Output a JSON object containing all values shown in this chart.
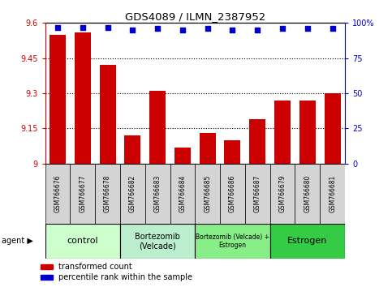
{
  "title": "GDS4089 / ILMN_2387952",
  "samples": [
    "GSM766676",
    "GSM766677",
    "GSM766678",
    "GSM766682",
    "GSM766683",
    "GSM766684",
    "GSM766685",
    "GSM766686",
    "GSM766687",
    "GSM766679",
    "GSM766680",
    "GSM766681"
  ],
  "bar_values": [
    9.55,
    9.56,
    9.42,
    9.12,
    9.31,
    9.07,
    9.13,
    9.1,
    9.19,
    9.27,
    9.27,
    9.3
  ],
  "percentile_values": [
    97,
    97,
    97,
    95,
    96,
    95,
    96,
    95,
    95,
    96,
    96,
    96
  ],
  "bar_color": "#cc0000",
  "dot_color": "#0000cc",
  "ylim_left": [
    9.0,
    9.6
  ],
  "ylim_right": [
    0,
    100
  ],
  "yticks_left": [
    9.0,
    9.15,
    9.3,
    9.45,
    9.6
  ],
  "ytick_labels_left": [
    "9",
    "9.15",
    "9.3",
    "9.45",
    "9.6"
  ],
  "yticks_right": [
    0,
    25,
    50,
    75,
    100
  ],
  "ytick_labels_right": [
    "0",
    "25",
    "50",
    "75",
    "100%"
  ],
  "hlines": [
    9.15,
    9.3,
    9.45
  ],
  "groups": [
    {
      "label": "control",
      "start": 0,
      "end": 3,
      "color": "#ccffcc",
      "fontsize": 8
    },
    {
      "label": "Bortezomib\n(Velcade)",
      "start": 3,
      "end": 6,
      "color": "#bbeecc",
      "fontsize": 7
    },
    {
      "label": "Bortezomib (Velcade) +\nEstrogen",
      "start": 6,
      "end": 9,
      "color": "#88ee88",
      "fontsize": 5.5
    },
    {
      "label": "Estrogen",
      "start": 9,
      "end": 12,
      "color": "#33cc44",
      "fontsize": 8
    }
  ],
  "legend_bar_label": "transformed count",
  "legend_dot_label": "percentile rank within the sample",
  "agent_label": "agent",
  "left_axis_color": "#cc0000",
  "right_axis_color": "#0000cc",
  "plot_bg": "#ffffff",
  "cell_bg": "#d4d4d4"
}
